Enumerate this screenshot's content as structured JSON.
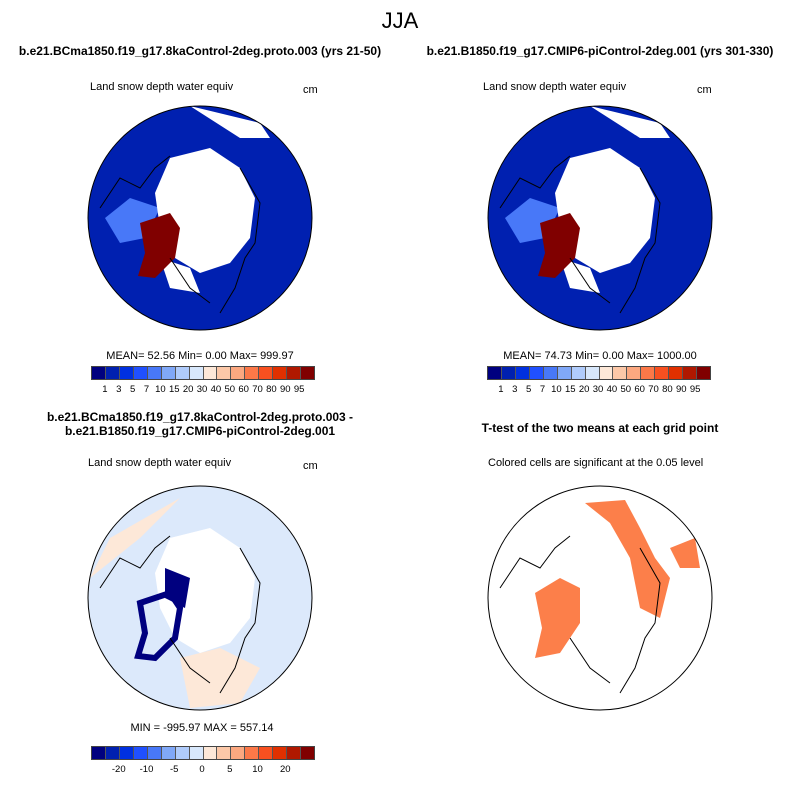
{
  "title": "JJA",
  "panels": [
    {
      "title": "b.e21.BCma1850.f19_g17.8kaControl-2deg.proto.003 (yrs 21-50)",
      "left": "Land snow depth water equiv",
      "right": "cm",
      "stats": "MEAN=  52.56  Min=   0.00  Max= 999.97"
    },
    {
      "title": "b.e21.B1850.f19_g17.CMIP6-piControl-2deg.001 (yrs 301-330)",
      "left": "Land snow depth water equiv",
      "right": "cm",
      "stats": "MEAN=  74.73  Min=   0.00  Max= 1000.00"
    },
    {
      "title": "b.e21.BCma1850.f19_g17.8kaControl-2deg.proto.003 - b.e21.B1850.f19_g17.CMIP6-piControl-2deg.001",
      "left": "Land snow depth water equiv",
      "right": "cm",
      "stats": "MIN = -995.97 MAX = 557.14"
    },
    {
      "title": "T-test of the two means at each grid point",
      "left": "Colored cells are significant at the 0.05 level"
    }
  ],
  "colorbar_colors": [
    "#00007f",
    "#0020b0",
    "#0030e0",
    "#2050ff",
    "#4878f8",
    "#80a8f8",
    "#b0ccfc",
    "#d8e8fc",
    "#fde8d8",
    "#fcc8a8",
    "#fca880",
    "#fc7848",
    "#f85020",
    "#e03000",
    "#b01800",
    "#800000"
  ],
  "colorbar_abs": {
    "labels": [
      "1",
      "3",
      "5",
      "7",
      "10",
      "15",
      "20",
      "30",
      "40",
      "50",
      "60",
      "70",
      "80",
      "90",
      "95"
    ]
  },
  "colorbar_diff": {
    "labels": [
      "-20",
      "-10",
      "-5",
      "0",
      "5",
      "10",
      "20"
    ]
  },
  "ttest_color": "#fc7f4a"
}
